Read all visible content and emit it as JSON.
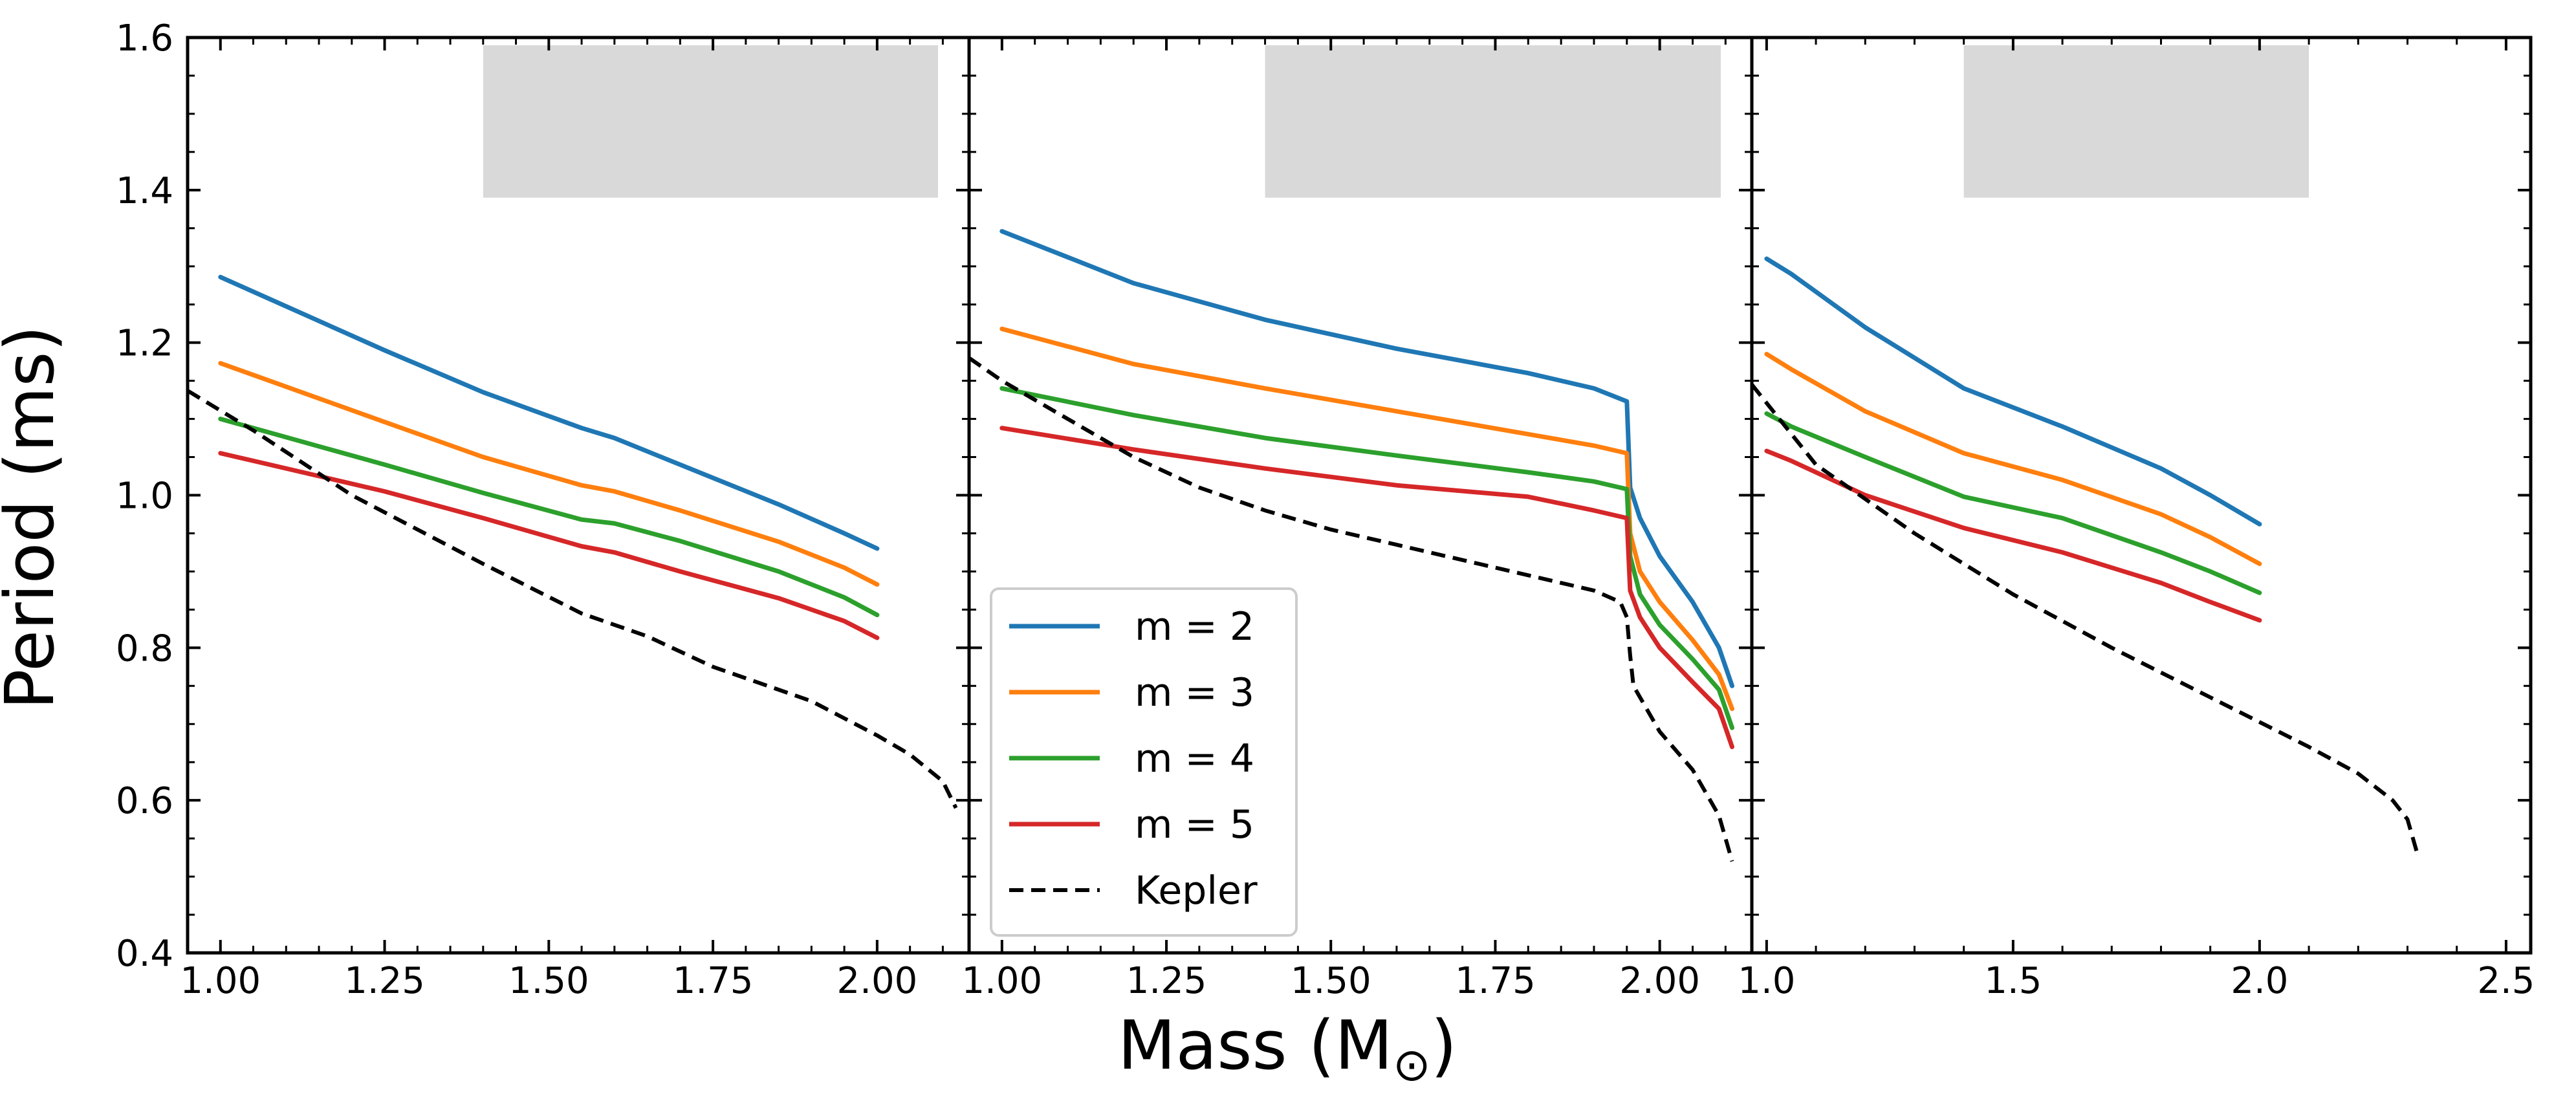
{
  "figure": {
    "ylabel": "Period (ms)",
    "xlabel_main": "Mass (M",
    "xlabel_sub": "⊙",
    "xlabel_close": ")"
  },
  "legend": {
    "location": "lower-left of middle panel",
    "entries": [
      {
        "label": "m = 2",
        "color": "#1f77b4",
        "dashed": false
      },
      {
        "label": "m = 3",
        "color": "#ff7f0e",
        "dashed": false
      },
      {
        "label": "m = 4",
        "color": "#2ca02c",
        "dashed": false
      },
      {
        "label": "m = 5",
        "color": "#d62728",
        "dashed": false
      },
      {
        "label": "Kepler",
        "color": "#000000",
        "dashed": true
      }
    ]
  },
  "chart_data": [
    {
      "type": "line",
      "panel": "left",
      "ylabel": "Period (ms)",
      "xlim": [
        0.95,
        2.14
      ],
      "ylim": [
        0.4,
        1.6
      ],
      "xticks": [
        1.0,
        1.25,
        1.5,
        1.75,
        2.0
      ],
      "xtick_labels": [
        "1.00",
        "1.25",
        "1.50",
        "1.75",
        "2.00"
      ],
      "yticks": [
        0.4,
        0.6,
        0.8,
        1.0,
        1.2,
        1.4,
        1.6
      ],
      "ytick_labels": [
        "0.4",
        "0.6",
        "0.8",
        "1.0",
        "1.2",
        "1.4",
        "1.6"
      ],
      "shaded_region": {
        "x": [
          1.4,
          2.14
        ],
        "y": [
          1.39,
          1.6
        ],
        "color": "#d9d9d9"
      },
      "series": [
        {
          "name": "m = 2",
          "color": "#1f77b4",
          "x": [
            1.0,
            1.25,
            1.4,
            1.55,
            1.6,
            1.7,
            1.85,
            1.95,
            2.0
          ],
          "values": [
            1.286,
            1.19,
            1.135,
            1.088,
            1.075,
            1.04,
            0.988,
            0.95,
            0.93
          ]
        },
        {
          "name": "m = 3",
          "color": "#ff7f0e",
          "x": [
            1.0,
            1.25,
            1.4,
            1.55,
            1.6,
            1.7,
            1.85,
            1.95,
            2.0
          ],
          "values": [
            1.173,
            1.096,
            1.05,
            1.013,
            1.005,
            0.98,
            0.939,
            0.905,
            0.883
          ]
        },
        {
          "name": "m = 4",
          "color": "#2ca02c",
          "x": [
            1.0,
            1.25,
            1.4,
            1.55,
            1.6,
            1.7,
            1.85,
            1.95,
            2.0
          ],
          "values": [
            1.1,
            1.04,
            1.003,
            0.968,
            0.963,
            0.94,
            0.9,
            0.866,
            0.843
          ]
        },
        {
          "name": "m = 5",
          "color": "#d62728",
          "x": [
            1.0,
            1.25,
            1.4,
            1.55,
            1.6,
            1.7,
            1.85,
            1.95,
            2.0
          ],
          "values": [
            1.055,
            1.005,
            0.97,
            0.933,
            0.925,
            0.9,
            0.865,
            0.835,
            0.813
          ]
        },
        {
          "name": "Kepler",
          "color": "#000000",
          "dashed": true,
          "x": [
            0.95,
            1.05,
            1.2,
            1.4,
            1.55,
            1.65,
            1.75,
            1.9,
            2.0,
            2.05,
            2.1,
            2.12
          ],
          "values": [
            1.137,
            1.085,
            1.0,
            0.91,
            0.845,
            0.815,
            0.775,
            0.73,
            0.685,
            0.66,
            0.625,
            0.59
          ]
        }
      ]
    },
    {
      "type": "line",
      "panel": "middle",
      "xlim": [
        0.95,
        2.14
      ],
      "ylim": [
        0.4,
        1.6
      ],
      "xticks": [
        1.0,
        1.25,
        1.5,
        1.75,
        2.0
      ],
      "xtick_labels": [
        "1.00",
        "1.25",
        "1.50",
        "1.75",
        "2.00"
      ],
      "yticks": [
        0.4,
        0.6,
        0.8,
        1.0,
        1.2,
        1.4,
        1.6
      ],
      "shaded_region": {
        "x": [
          1.4,
          2.14
        ],
        "y": [
          1.39,
          1.6
        ],
        "color": "#d9d9d9"
      },
      "series": [
        {
          "name": "m = 2",
          "color": "#1f77b4",
          "x": [
            1.0,
            1.2,
            1.4,
            1.6,
            1.8,
            1.9,
            1.95,
            1.955,
            1.97,
            2.0,
            2.05,
            2.09,
            2.11
          ],
          "values": [
            1.346,
            1.278,
            1.23,
            1.192,
            1.16,
            1.14,
            1.123,
            1.01,
            0.97,
            0.92,
            0.86,
            0.8,
            0.75
          ]
        },
        {
          "name": "m = 3",
          "color": "#ff7f0e",
          "x": [
            1.0,
            1.2,
            1.4,
            1.6,
            1.8,
            1.9,
            1.95,
            1.955,
            1.97,
            2.0,
            2.05,
            2.09,
            2.11
          ],
          "values": [
            1.218,
            1.172,
            1.14,
            1.11,
            1.08,
            1.065,
            1.055,
            0.95,
            0.9,
            0.86,
            0.81,
            0.765,
            0.72
          ]
        },
        {
          "name": "m = 4",
          "color": "#2ca02c",
          "x": [
            1.0,
            1.2,
            1.4,
            1.6,
            1.8,
            1.9,
            1.95,
            1.955,
            1.97,
            2.0,
            2.05,
            2.09,
            2.11
          ],
          "values": [
            1.14,
            1.105,
            1.075,
            1.052,
            1.03,
            1.018,
            1.008,
            0.92,
            0.87,
            0.83,
            0.785,
            0.745,
            0.695
          ]
        },
        {
          "name": "m = 5",
          "color": "#d62728",
          "x": [
            1.0,
            1.2,
            1.4,
            1.6,
            1.8,
            1.9,
            1.95,
            1.955,
            1.97,
            2.0,
            2.05,
            2.09,
            2.11
          ],
          "values": [
            1.088,
            1.06,
            1.035,
            1.013,
            0.998,
            0.98,
            0.97,
            0.875,
            0.84,
            0.8,
            0.755,
            0.72,
            0.67
          ]
        },
        {
          "name": "Kepler",
          "color": "#000000",
          "dashed": true,
          "x": [
            0.95,
            1.0,
            1.1,
            1.2,
            1.3,
            1.4,
            1.5,
            1.6,
            1.7,
            1.8,
            1.9,
            1.94,
            1.95,
            1.955,
            1.96,
            2.0,
            2.05,
            2.09,
            2.11
          ],
          "values": [
            1.18,
            1.15,
            1.1,
            1.05,
            1.01,
            0.98,
            0.955,
            0.935,
            0.915,
            0.895,
            0.875,
            0.86,
            0.84,
            0.79,
            0.75,
            0.69,
            0.64,
            0.58,
            0.52
          ]
        }
      ]
    },
    {
      "type": "line",
      "panel": "right",
      "xlim": [
        0.97,
        2.55
      ],
      "ylim": [
        0.4,
        1.6
      ],
      "xticks": [
        1.0,
        1.5,
        2.0,
        2.5
      ],
      "xtick_labels": [
        "1.0",
        "1.5",
        "2.0",
        "2.5"
      ],
      "yticks": [
        0.4,
        0.6,
        0.8,
        1.0,
        1.2,
        1.4,
        1.6
      ],
      "shaded_region": {
        "x": [
          1.4,
          2.1
        ],
        "y": [
          1.39,
          1.6
        ],
        "color": "#d9d9d9"
      },
      "series": [
        {
          "name": "m = 2",
          "color": "#1f77b4",
          "x": [
            1.0,
            1.05,
            1.2,
            1.4,
            1.6,
            1.8,
            1.9,
            2.0
          ],
          "values": [
            1.31,
            1.29,
            1.22,
            1.14,
            1.09,
            1.035,
            1.0,
            0.962
          ]
        },
        {
          "name": "m = 3",
          "color": "#ff7f0e",
          "x": [
            1.0,
            1.05,
            1.2,
            1.4,
            1.6,
            1.8,
            1.9,
            2.0
          ],
          "values": [
            1.185,
            1.165,
            1.11,
            1.055,
            1.02,
            0.975,
            0.945,
            0.91
          ]
        },
        {
          "name": "m = 4",
          "color": "#2ca02c",
          "x": [
            1.0,
            1.05,
            1.2,
            1.4,
            1.6,
            1.8,
            1.9,
            2.0
          ],
          "values": [
            1.107,
            1.09,
            1.05,
            0.998,
            0.97,
            0.925,
            0.9,
            0.872
          ]
        },
        {
          "name": "m = 5",
          "color": "#d62728",
          "x": [
            1.0,
            1.05,
            1.2,
            1.4,
            1.6,
            1.8,
            1.9,
            2.0
          ],
          "values": [
            1.058,
            1.045,
            1.0,
            0.957,
            0.925,
            0.885,
            0.86,
            0.836
          ]
        },
        {
          "name": "Kepler",
          "color": "#000000",
          "dashed": true,
          "x": [
            0.97,
            1.1,
            1.3,
            1.5,
            1.7,
            1.9,
            2.1,
            2.2,
            2.27,
            2.3,
            2.32
          ],
          "values": [
            1.145,
            1.04,
            0.95,
            0.87,
            0.8,
            0.735,
            0.67,
            0.635,
            0.6,
            0.575,
            0.53
          ]
        }
      ]
    }
  ]
}
